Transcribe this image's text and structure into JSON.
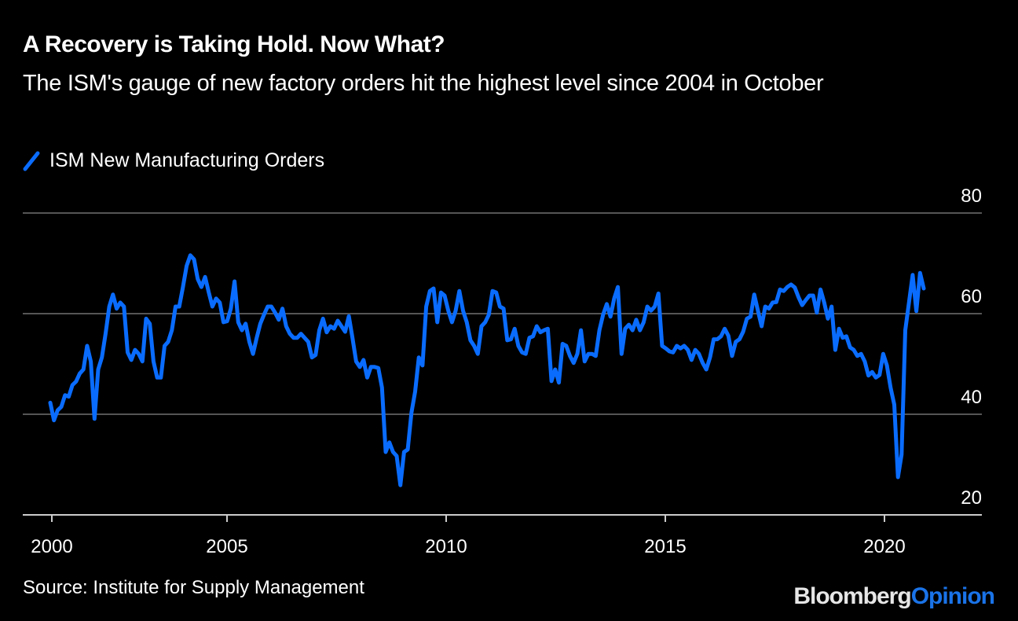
{
  "header": {
    "title": "A Recovery is Taking Hold. Now What?",
    "subtitle": "The ISM's gauge of new factory orders hit the highest level since 2004 in October"
  },
  "legend": {
    "items": [
      {
        "label": "ISM New Manufacturing Orders",
        "color": "#0a6cff",
        "icon": "diagonal-line-swatch"
      }
    ]
  },
  "footer": {
    "source": "Source: Institute for Supply Management",
    "brand_part1": "Bloomberg",
    "brand_part2": "Opinion"
  },
  "colors": {
    "background": "#000000",
    "line": "#0a6cff",
    "grid": "#555555",
    "axis": "#cccccc",
    "brand_accent": "#1a73e8"
  },
  "chart_data": {
    "type": "line",
    "title": "A Recovery is Taking Hold. Now What?",
    "subtitle": "The ISM's gauge of new factory orders hit the highest level since 2004 in October",
    "xlabel": "",
    "ylabel": "",
    "x_start": "2000-01",
    "x_end": "2020-11",
    "x_ticks": [
      "2000",
      "2005",
      "2010",
      "2015",
      "2020"
    ],
    "y_ticks": [
      20,
      40,
      60,
      80
    ],
    "ylim": [
      20,
      80
    ],
    "y_axis_side": "right",
    "grid": true,
    "legend_position": "top-left",
    "series": [
      {
        "name": "ISM New Manufacturing Orders",
        "values": [
          42.3,
          38.8,
          40.8,
          41.5,
          43.8,
          43.5,
          45.8,
          46.5,
          48.1,
          48.9,
          53.6,
          50.5,
          39.1,
          48.9,
          51.3,
          56.0,
          61.4,
          63.8,
          61.0,
          62.2,
          61.4,
          52.3,
          50.8,
          52.8,
          52.0,
          50.5,
          59.0,
          58.0,
          50.5,
          47.3,
          47.3,
          53.6,
          54.4,
          56.7,
          61.4,
          61.4,
          65.3,
          69.5,
          71.6,
          70.8,
          66.9,
          65.3,
          67.3,
          64.2,
          61.4,
          63.0,
          62.2,
          58.3,
          58.5,
          61.0,
          66.4,
          58.3,
          56.7,
          58.0,
          54.4,
          52.0,
          55.2,
          58.0,
          59.8,
          61.4,
          61.4,
          60.2,
          58.8,
          61.0,
          57.5,
          56.0,
          55.2,
          55.2,
          56.0,
          55.2,
          54.4,
          51.3,
          51.8,
          56.7,
          59.0,
          56.3,
          57.5,
          57.0,
          58.6,
          57.5,
          56.4,
          59.5,
          55.2,
          50.5,
          49.4,
          50.8,
          47.3,
          49.4,
          49.4,
          49.2,
          45.3,
          32.5,
          34.4,
          32.5,
          31.7,
          25.9,
          32.5,
          33.0,
          40.3,
          44.5,
          51.3,
          49.7,
          61.4,
          64.5,
          65.0,
          58.3,
          64.2,
          63.6,
          60.6,
          58.3,
          60.6,
          64.5,
          60.6,
          58.3,
          54.7,
          53.6,
          52.0,
          57.5,
          58.3,
          59.8,
          64.5,
          64.2,
          61.4,
          61.0,
          54.7,
          54.9,
          57.0,
          53.6,
          52.3,
          52.0,
          55.2,
          55.5,
          57.5,
          56.3,
          56.7,
          57.0,
          46.6,
          48.9,
          46.3,
          54.0,
          53.6,
          51.6,
          50.2,
          52.0,
          56.7,
          50.5,
          52.0,
          52.0,
          51.6,
          56.7,
          59.8,
          61.9,
          59.4,
          63.0,
          65.3,
          52.0,
          57.0,
          57.8,
          56.7,
          58.8,
          56.7,
          58.3,
          61.4,
          60.6,
          61.4,
          64.0,
          53.6,
          53.1,
          52.5,
          52.3,
          53.6,
          53.1,
          53.6,
          52.8,
          50.8,
          52.8,
          52.0,
          50.2,
          48.9,
          51.3,
          54.9,
          54.9,
          55.5,
          57.0,
          55.6,
          51.6,
          54.4,
          54.9,
          56.4,
          59.0,
          59.4,
          63.8,
          60.6,
          57.5,
          61.4,
          61.0,
          62.2,
          62.3,
          64.8,
          64.5,
          65.3,
          65.8,
          65.2,
          63.3,
          61.7,
          62.7,
          63.6,
          63.6,
          60.2,
          64.8,
          62.2,
          59.0,
          61.4,
          52.8,
          57.0,
          55.2,
          55.5,
          53.3,
          52.8,
          51.6,
          52.0,
          50.5,
          47.7,
          48.4,
          47.3,
          47.8,
          52.0,
          49.7,
          45.3,
          41.9,
          27.5,
          32.0,
          56.7,
          62.2,
          67.7,
          60.5,
          68.1,
          65.0
        ]
      }
    ]
  }
}
